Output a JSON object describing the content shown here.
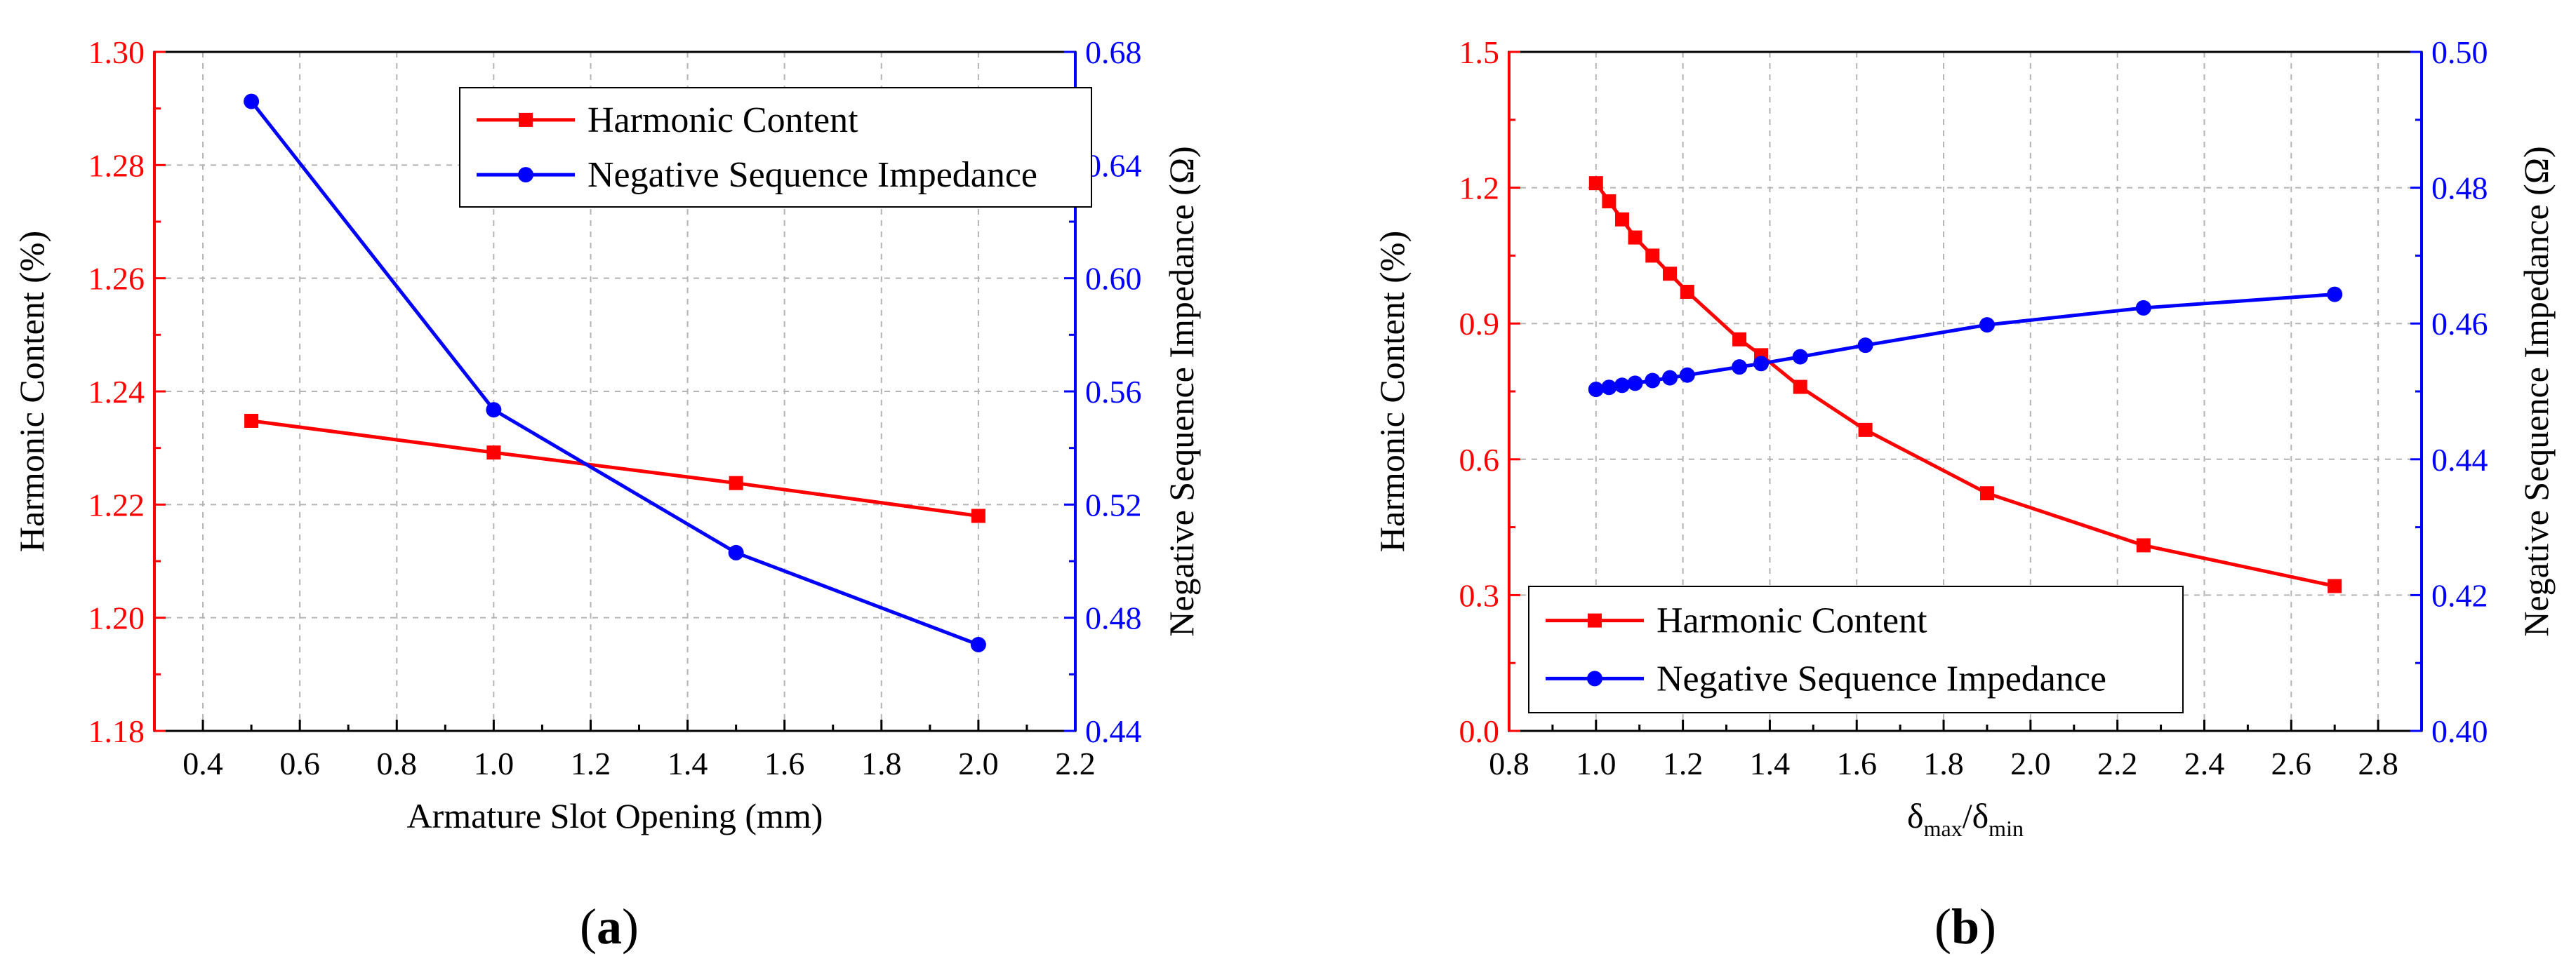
{
  "figure": {
    "colors": {
      "harmonic": "#ff0000",
      "impedance": "#0000ff",
      "grid": "#b4b4b4",
      "axis": "#000000"
    }
  },
  "chart_data": [
    {
      "type": "line",
      "panel_label": "a",
      "xlabel": "Armature Slot Opening (mm)",
      "ylabel_left": "Harmonic Content (%)",
      "ylabel_right": "Negative Sequence Impedance (Ω)",
      "xlim": [
        0.3,
        2.2
      ],
      "xticks": [
        "0.4",
        "0.6",
        "0.8",
        "1.0",
        "1.2",
        "1.4",
        "1.6",
        "1.8",
        "2.0",
        "2.2"
      ],
      "ylim_left": [
        1.18,
        1.3
      ],
      "yticks_left": [
        "1.18",
        "1.20",
        "1.22",
        "1.24",
        "1.26",
        "1.28",
        "1.30"
      ],
      "ylim_right": [
        0.44,
        0.68
      ],
      "yticks_right": [
        "0.44",
        "0.48",
        "0.52",
        "0.56",
        "0.60",
        "0.64",
        "0.68"
      ],
      "grid": true,
      "legend_position": "top-right",
      "series": [
        {
          "name": "Harmonic Content",
          "axis": "left",
          "marker": "square",
          "color": "#ff0000",
          "x": [
            0.5,
            1.0,
            1.5,
            2.0
          ],
          "y": [
            1.2348,
            1.2292,
            1.2238,
            1.218
          ]
        },
        {
          "name": "Negative Sequence Impedance",
          "axis": "right",
          "marker": "circle",
          "color": "#0000ff",
          "x": [
            0.5,
            1.0,
            1.5,
            2.0
          ],
          "y": [
            0.6625,
            0.5535,
            0.503,
            0.4705
          ]
        }
      ]
    },
    {
      "type": "line",
      "panel_label": "b",
      "xlabel": "δmax/δmin",
      "xlabel_parts": {
        "sym1": "δ",
        "sub1": "max",
        "sep": "/",
        "sym2": "δ",
        "sub2": "min"
      },
      "ylabel_left": "Harmonic Content (%)",
      "ylabel_right": "Negative Sequence Impedance (Ω)",
      "xlim": [
        0.8,
        2.9
      ],
      "xticks": [
        "0.8",
        "1.0",
        "1.2",
        "1.4",
        "1.6",
        "1.8",
        "2.0",
        "2.2",
        "2.4",
        "2.6",
        "2.8"
      ],
      "ylim_left": [
        0.0,
        1.5
      ],
      "yticks_left": [
        "0.0",
        "0.3",
        "0.6",
        "0.9",
        "1.2",
        "1.5"
      ],
      "ylim_right": [
        0.4,
        0.5
      ],
      "yticks_right": [
        "0.40",
        "0.42",
        "0.44",
        "0.46",
        "0.48",
        "0.50"
      ],
      "grid": true,
      "legend_position": "bottom-left",
      "series": [
        {
          "name": "Harmonic Content",
          "axis": "left",
          "marker": "square",
          "color": "#ff0000",
          "x": [
            1.0,
            1.03,
            1.06,
            1.09,
            1.13,
            1.17,
            1.21,
            1.33,
            1.38,
            1.47,
            1.62,
            1.9,
            2.26,
            2.7
          ],
          "y": [
            1.21,
            1.17,
            1.13,
            1.09,
            1.05,
            1.01,
            0.97,
            0.865,
            0.83,
            0.76,
            0.665,
            0.525,
            0.41,
            0.32
          ]
        },
        {
          "name": "Negative Sequence Impedance",
          "axis": "right",
          "marker": "circle",
          "color": "#0000ff",
          "x": [
            1.0,
            1.03,
            1.06,
            1.09,
            1.13,
            1.17,
            1.21,
            1.33,
            1.38,
            1.47,
            1.62,
            1.9,
            2.26,
            2.7
          ],
          "y": [
            0.4503,
            0.4506,
            0.4509,
            0.4512,
            0.4516,
            0.452,
            0.4524,
            0.4536,
            0.4541,
            0.4551,
            0.4568,
            0.4598,
            0.4623,
            0.4643
          ]
        }
      ]
    }
  ]
}
